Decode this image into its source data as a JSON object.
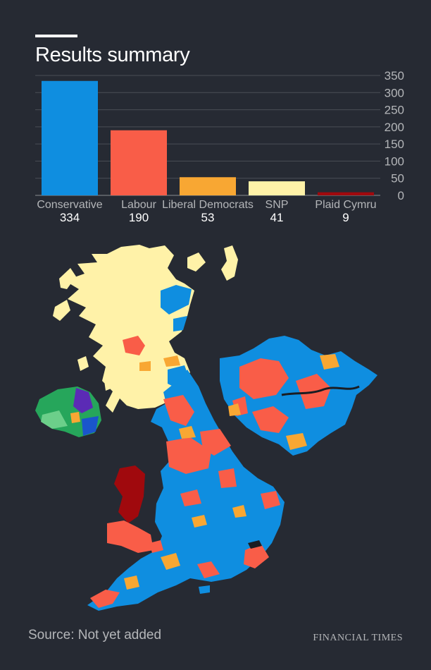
{
  "header": {
    "title": "Results summary"
  },
  "chart_data": {
    "type": "bar",
    "title": "Results summary",
    "categories": [
      "Conservative",
      "Labour",
      "Liberal Democrats",
      "SNP",
      "Plaid Cymru"
    ],
    "values": [
      334,
      190,
      53,
      41,
      9
    ],
    "value_labels": [
      "334",
      "190",
      "53",
      "41",
      "9"
    ],
    "colors": [
      "#0f8ee0",
      "#f95d48",
      "#f8a733",
      "#fff2a8",
      "#a0090d"
    ],
    "ylim": [
      0,
      350
    ],
    "yticks": [
      0,
      50,
      100,
      150,
      200,
      250,
      300,
      350
    ],
    "ytick_labels": [
      "0",
      "50",
      "100",
      "150",
      "200",
      "250",
      "300",
      "350"
    ],
    "ytick_side": "right",
    "grid": true,
    "xlabel": "",
    "ylabel": ""
  },
  "map": {
    "party_colors": {
      "conservative": "#0f8ee0",
      "labour": "#f95d48",
      "libdem": "#f8a733",
      "snp": "#fff2a8",
      "plaid": "#a0090d",
      "ni_green": "#26a65b",
      "ni_light_green": "#6ccf8a",
      "ni_purple": "#5b2bb5",
      "ni_blue": "#1a55cc",
      "water": "#1a1d23"
    }
  },
  "footer": {
    "source": "Source: Not yet added",
    "brand": "FINANCIAL TIMES"
  }
}
